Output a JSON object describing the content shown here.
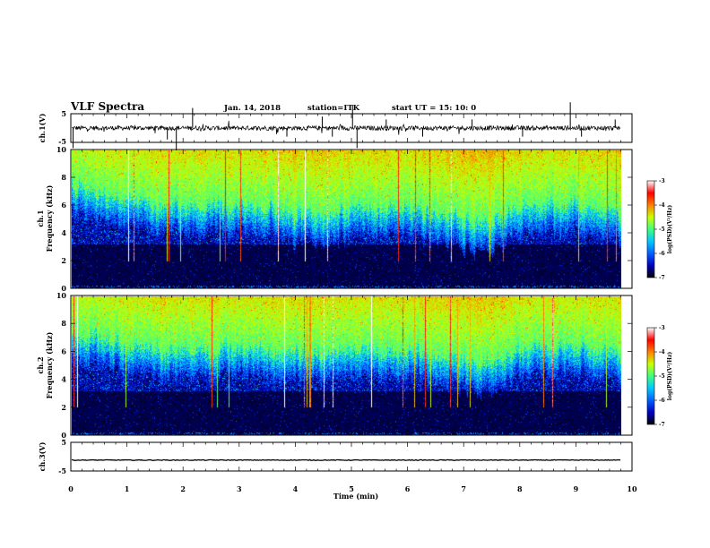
{
  "header": {
    "title": "VLF Spectra",
    "date": "Jan. 14, 2018",
    "station": "station=ITK",
    "start": "start UT =  15: 10: 0"
  },
  "chart_data": [
    {
      "type": "line",
      "panel": "waveform-ch1",
      "ylabel": "ch.1(V)",
      "ylim": [
        -5,
        5
      ],
      "yticks": [
        "5",
        "-5"
      ],
      "xlim": [
        0,
        10
      ],
      "x_end_min": 9.8,
      "baseline_v": 0,
      "spikes": [
        {
          "t": 0.04,
          "v": -7
        },
        {
          "t": 1.72,
          "v": -4
        },
        {
          "t": 1.88,
          "v": -8
        },
        {
          "t": 2.17,
          "v": 7
        },
        {
          "t": 3.85,
          "v": -3
        },
        {
          "t": 4.48,
          "v": 4
        },
        {
          "t": 4.66,
          "v": -3
        },
        {
          "t": 5.02,
          "v": 8
        },
        {
          "t": 5.1,
          "v": -7
        },
        {
          "t": 5.62,
          "v": 3
        },
        {
          "t": 6.27,
          "v": -3
        },
        {
          "t": 7.15,
          "v": 3
        },
        {
          "t": 8.05,
          "v": -3
        },
        {
          "t": 8.9,
          "v": 9
        },
        {
          "t": 9.1,
          "v": -3
        },
        {
          "t": 9.7,
          "v": 3
        }
      ]
    },
    {
      "type": "heatmap",
      "panel": "spectrogram-ch1",
      "ylabel": "ch.1\nFrequency (kHz)",
      "ylim": [
        0,
        10
      ],
      "yticks": [
        "0",
        "2",
        "4",
        "6",
        "8",
        "10"
      ],
      "xlim": [
        0,
        10
      ],
      "x_end_min": 9.8,
      "colorbar": {
        "label": "log(PSD)(V²/Hz)",
        "range": [
          -7,
          -3
        ],
        "ticks": [
          "-3",
          "-4",
          "-5",
          "-6",
          "-7"
        ]
      },
      "noise_edge_khz": [
        {
          "t": 0,
          "f": 7.5
        },
        {
          "t": 1,
          "f": 6.5
        },
        {
          "t": 2,
          "f": 6.0
        },
        {
          "t": 3,
          "f": 6.2
        },
        {
          "t": 4,
          "f": 5.5
        },
        {
          "t": 5,
          "f": 5.8
        },
        {
          "t": 6,
          "f": 6.0
        },
        {
          "t": 7,
          "f": 5.0
        },
        {
          "t": 7.5,
          "f": 4.8
        },
        {
          "t": 8,
          "f": 6.0
        },
        {
          "t": 9,
          "f": 6.3
        },
        {
          "t": 9.8,
          "f": 5.5
        }
      ]
    },
    {
      "type": "heatmap",
      "panel": "spectrogram-ch2",
      "ylabel": "ch.2\nFrequency (kHz)",
      "ylim": [
        0,
        10
      ],
      "yticks": [
        "0",
        "2",
        "4",
        "6",
        "8",
        "10"
      ],
      "xlim": [
        0,
        10
      ],
      "x_end_min": 9.8,
      "colorbar": {
        "label": "log(PSD)(V²/Hz)",
        "range": [
          -7,
          -3
        ],
        "ticks": [
          "-3",
          "-4",
          "-5",
          "-6",
          "-7"
        ]
      },
      "noise_edge_khz": [
        {
          "t": 0,
          "f": 7.5
        },
        {
          "t": 1,
          "f": 6.8
        },
        {
          "t": 2,
          "f": 6.2
        },
        {
          "t": 3,
          "f": 6.5
        },
        {
          "t": 4,
          "f": 6.0
        },
        {
          "t": 5,
          "f": 6.2
        },
        {
          "t": 6,
          "f": 6.4
        },
        {
          "t": 7,
          "f": 5.4
        },
        {
          "t": 7.5,
          "f": 5.2
        },
        {
          "t": 8,
          "f": 6.3
        },
        {
          "t": 9,
          "f": 6.6
        },
        {
          "t": 9.8,
          "f": 6.0
        }
      ]
    },
    {
      "type": "line",
      "panel": "waveform-ch3",
      "ylabel": "ch.3(V)",
      "ylim": [
        -5,
        5
      ],
      "yticks": [
        "5",
        "-5"
      ],
      "xlim": [
        0,
        10
      ],
      "x_end_min": 9.8,
      "baseline_v": -1.2,
      "spikes": []
    }
  ],
  "x_axis": {
    "label": "Time (min)",
    "ticks": [
      "0",
      "1",
      "2",
      "3",
      "4",
      "5",
      "6",
      "7",
      "8",
      "9",
      "10"
    ]
  },
  "colors": {
    "waveform": "#000000",
    "colormap": [
      "#000000",
      "#0000c0",
      "#0060ff",
      "#00c8ff",
      "#40ff80",
      "#c8ff00",
      "#ff8000",
      "#ff0000",
      "#ffffff"
    ]
  }
}
